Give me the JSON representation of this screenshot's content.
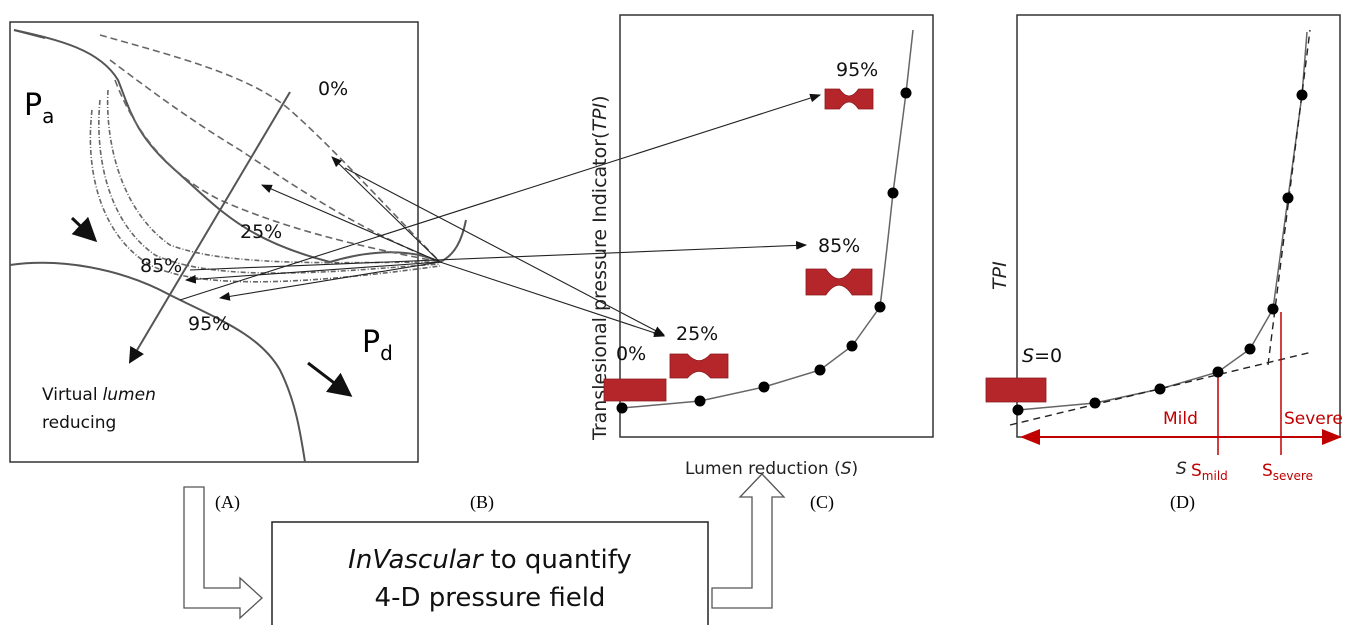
{
  "panel_a": {
    "p_a": {
      "main": "P",
      "sub": "a"
    },
    "p_d": {
      "main": "P",
      "sub": "d"
    },
    "stenosis_labels": [
      "0%",
      "25%",
      "85%",
      "95%"
    ],
    "caption": {
      "line1_pre": "Virtual",
      "line1_em": "lumen",
      "line2": "reducing"
    }
  },
  "panel_labels": [
    "(A)",
    "(B)",
    "(C)",
    "(D)"
  ],
  "process_box": {
    "line1_em": "InVascular",
    "line1_rest": "to quantify",
    "line2": "4-D pressure field"
  },
  "panel_c": {
    "y_label": {
      "text": "Translesional pressure Indicator(",
      "em": "TPI",
      "end": ")"
    },
    "x_label": {
      "text": "Lumen reduction (",
      "em": "S",
      "end": ")"
    },
    "stenosis_labels": [
      "95%",
      "85%",
      "25%",
      "0%"
    ]
  },
  "panel_d": {
    "y_label": "TPI",
    "s0": {
      "em": "S",
      "rest": "=0"
    },
    "mild": "Mild",
    "severe": "Severe",
    "x_label": "S",
    "s_mild": {
      "main": "S",
      "sub": "mild"
    },
    "s_severe": {
      "main": "S",
      "sub": "severe"
    }
  }
}
